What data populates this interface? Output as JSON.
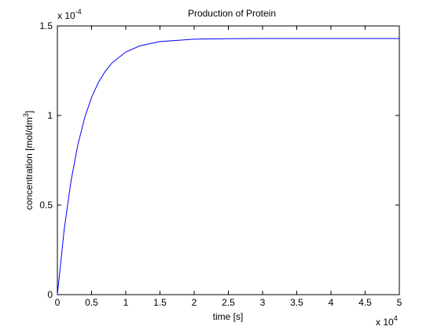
{
  "chart_data": {
    "type": "line",
    "title": "Production of Protein",
    "x_label": "time [s]",
    "y_label": [
      "concentration [mol/dm",
      "3",
      "]"
    ],
    "x_multiplier": {
      "base": "x 10",
      "exponent": "4"
    },
    "y_multiplier": {
      "base": "x 10",
      "exponent": "-4"
    },
    "x": [
      0,
      0.1,
      0.2,
      0.3,
      0.4,
      0.5,
      0.6,
      0.7,
      0.8,
      1.0,
      1.2,
      1.5,
      2,
      2.5,
      3,
      4,
      5
    ],
    "series": [
      {
        "color": "#0000ff",
        "values": [
          0,
          0.365,
          0.636,
          0.838,
          0.989,
          1.101,
          1.185,
          1.247,
          1.294,
          1.354,
          1.388,
          1.413,
          1.426,
          1.429,
          1.43,
          1.43,
          1.43
        ]
      }
    ],
    "xlim": [
      0,
      5
    ],
    "ylim": [
      0,
      1.5
    ],
    "xticks": [
      0,
      0.5,
      1,
      1.5,
      2,
      2.5,
      3,
      3.5,
      4,
      4.5,
      5
    ],
    "yticks": [
      0,
      0.5,
      1,
      1.5
    ],
    "grid": false
  }
}
